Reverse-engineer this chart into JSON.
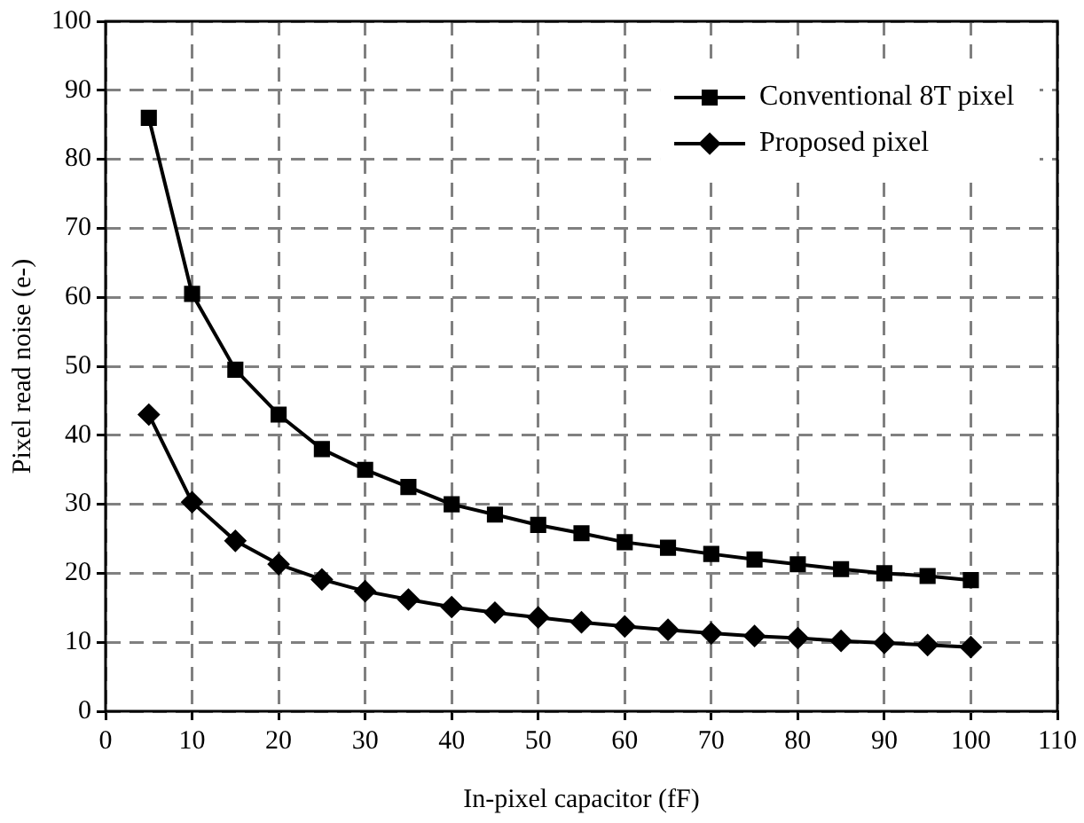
{
  "chart_data": {
    "type": "line",
    "xlabel": "In-pixel capacitor (fF)",
    "ylabel": "Pixel read noise (e-)",
    "x": [
      5,
      10,
      15,
      20,
      25,
      30,
      35,
      40,
      45,
      50,
      55,
      60,
      65,
      70,
      75,
      80,
      85,
      90,
      95,
      100
    ],
    "series": [
      {
        "name": "Conventional 8T pixel",
        "color": "#000000",
        "marker": "square",
        "values": [
          86,
          60.5,
          49.5,
          43,
          38,
          35,
          32.5,
          30,
          28.5,
          27,
          25.8,
          24.5,
          23.7,
          22.8,
          22,
          21.3,
          20.6,
          20,
          19.6,
          19
        ]
      },
      {
        "name": "Proposed pixel",
        "color": "#000000",
        "marker": "diamond",
        "values": [
          43,
          30.3,
          24.7,
          21.3,
          19.1,
          17.4,
          16.2,
          15.1,
          14.3,
          13.6,
          12.9,
          12.3,
          11.8,
          11.3,
          10.9,
          10.6,
          10.2,
          9.9,
          9.6,
          9.3
        ]
      }
    ],
    "xlim": [
      0,
      110
    ],
    "xticks": [
      0,
      10,
      20,
      30,
      40,
      50,
      60,
      70,
      80,
      90,
      100,
      110
    ],
    "ylim": [
      0,
      100
    ],
    "yticks": [
      0,
      10,
      20,
      30,
      40,
      50,
      60,
      70,
      80,
      90,
      100
    ],
    "grid": true,
    "line_style": "solid",
    "legend": "top right"
  }
}
